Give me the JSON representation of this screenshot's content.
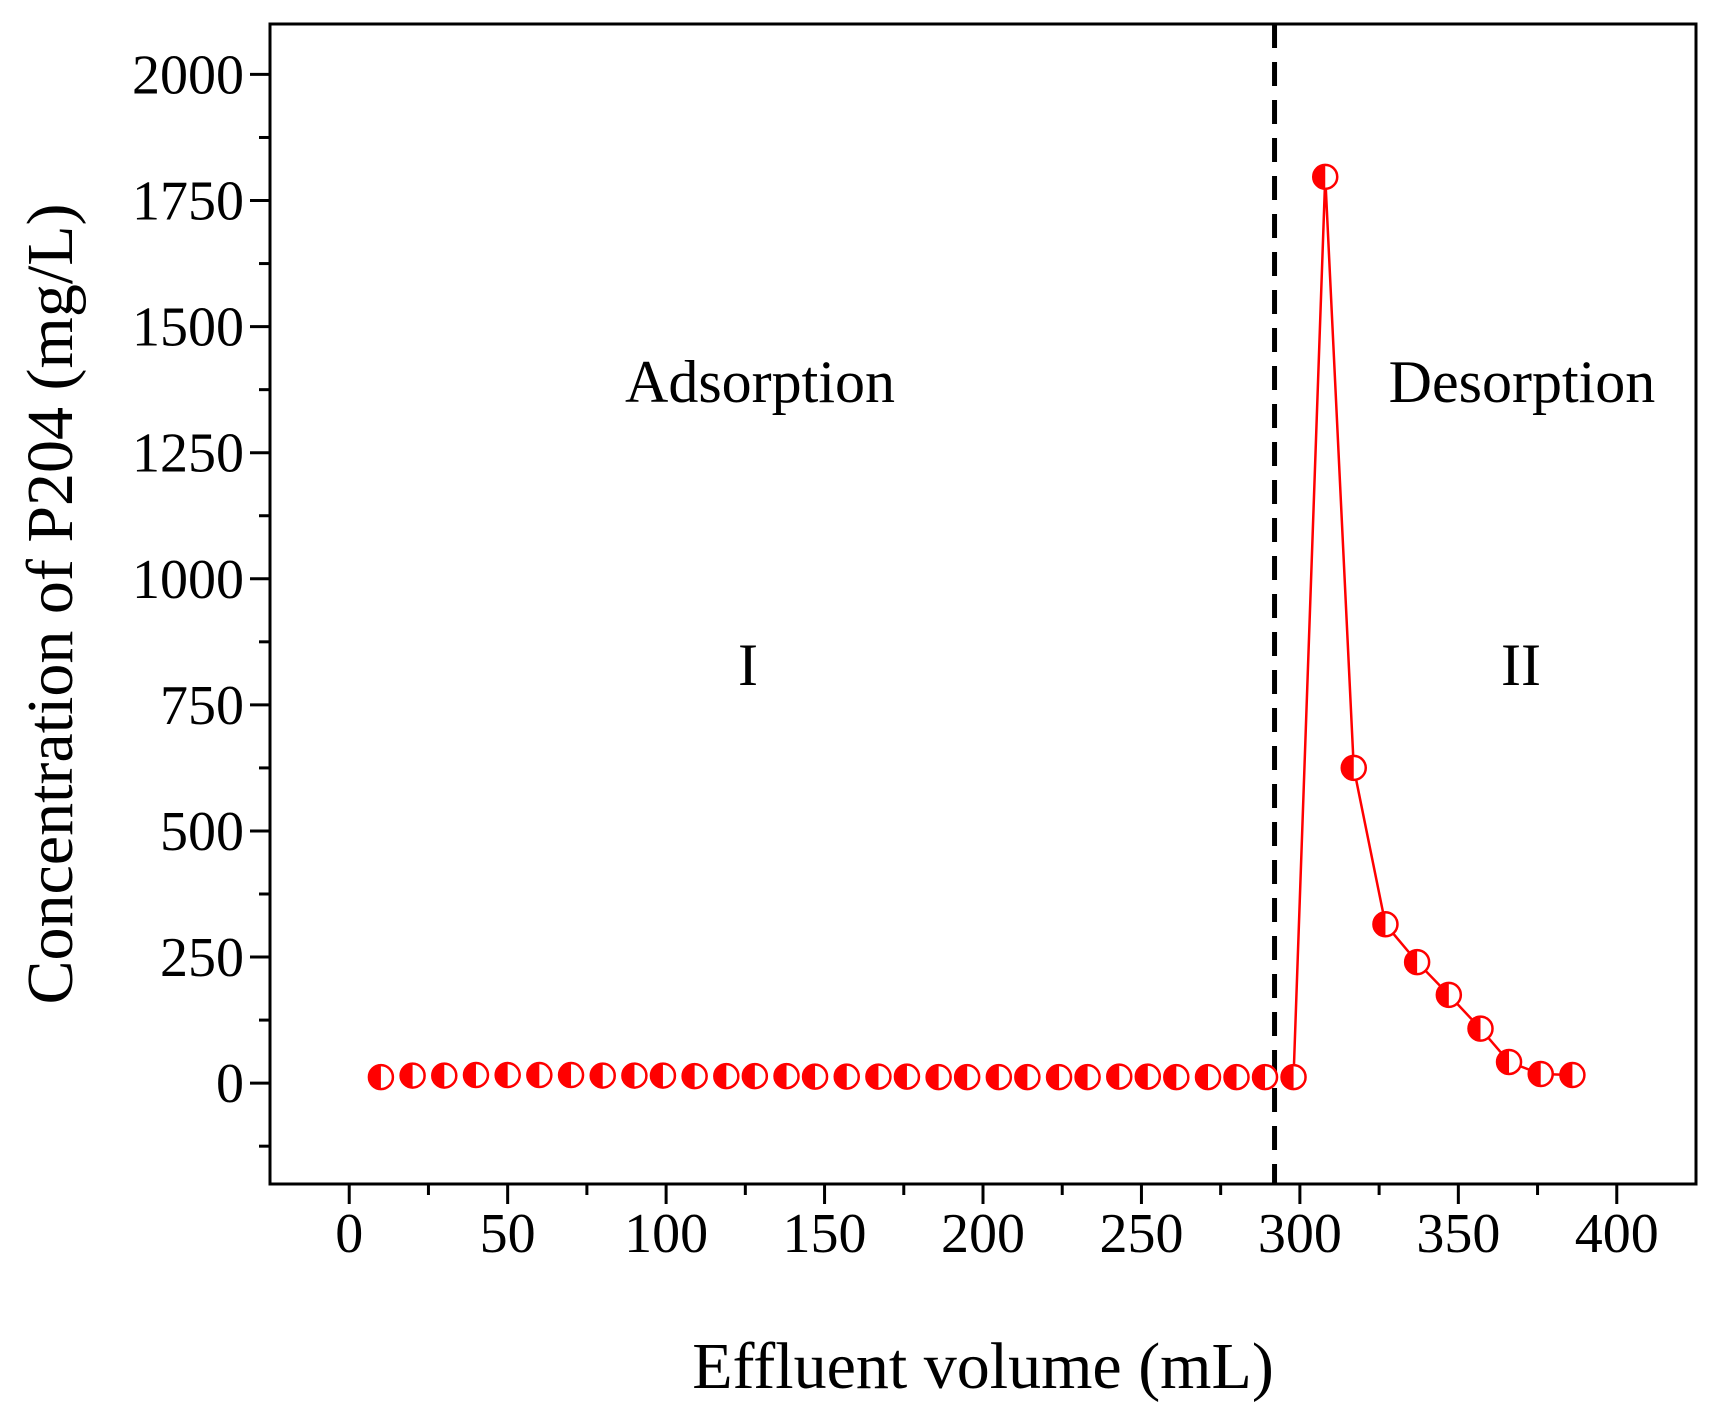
{
  "chart_data": {
    "type": "scatter",
    "title": "",
    "xlabel": "Effluent volume (mL)",
    "ylabel": "Concentration of P204 (mg/L)",
    "xlim": [
      -25,
      425
    ],
    "ylim": [
      -200,
      2100
    ],
    "xticks": [
      0,
      50,
      100,
      150,
      200,
      250,
      300,
      350,
      400
    ],
    "yticks": [
      0,
      250,
      500,
      750,
      1000,
      1250,
      1500,
      1750,
      2000
    ],
    "xtick_labels": [
      "0",
      "50",
      "100",
      "150",
      "200",
      "250",
      "300",
      "350",
      "400"
    ],
    "ytick_labels": [
      "0",
      "250",
      "500",
      "750",
      "1000",
      "1250",
      "1500",
      "1750",
      "2000"
    ],
    "divider_x": 292,
    "annotations": {
      "adsorption": "Adsorption",
      "desorption": "Desorption",
      "region1": "I",
      "region2": "II"
    },
    "series": [
      {
        "name": "Adsorption",
        "color": "#ff0000",
        "connected": false,
        "x": [
          10,
          20,
          30,
          40,
          50,
          60,
          70,
          80,
          90,
          99,
          109,
          119,
          128,
          138,
          147,
          157,
          167,
          176,
          186,
          195,
          205,
          214,
          224,
          233,
          243,
          252,
          261,
          271,
          280,
          289
        ],
        "y": [
          12,
          15,
          15,
          16,
          16,
          16,
          16,
          15,
          15,
          15,
          14,
          14,
          14,
          14,
          13,
          13,
          13,
          13,
          12,
          12,
          12,
          12,
          12,
          12,
          13,
          13,
          12,
          12,
          12,
          12
        ]
      },
      {
        "name": "Desorption",
        "color": "#ff0000",
        "connected": true,
        "x": [
          298,
          308,
          317,
          327,
          337,
          347,
          357,
          366,
          376,
          386
        ],
        "y": [
          12,
          1797,
          625,
          315,
          240,
          175,
          108,
          42,
          18,
          16
        ]
      }
    ]
  }
}
